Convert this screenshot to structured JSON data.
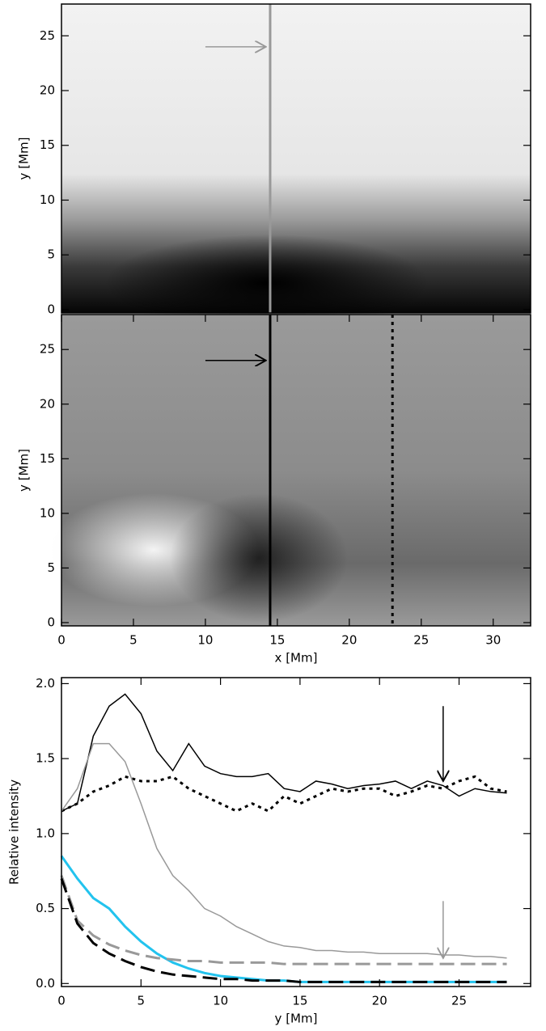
{
  "chart_data": [
    {
      "type": "image",
      "ylabel": "y [Mm]",
      "xlim": [
        0,
        32.6
      ],
      "ylim": [
        -0.3,
        27.9
      ],
      "yticks": [
        0,
        5,
        10,
        15,
        20,
        25
      ],
      "lines": [
        {
          "x": 14.5,
          "color": "#999999",
          "style": "solid"
        }
      ],
      "arrows": [
        {
          "x1": 10,
          "x2": 14.2,
          "y": 24,
          "color": "#999999"
        }
      ]
    },
    {
      "type": "image",
      "ylabel": "y [Mm]",
      "xlabel": "x [Mm]",
      "xlim": [
        0,
        32.6
      ],
      "ylim": [
        -0.3,
        28.2
      ],
      "xticks": [
        0,
        5,
        10,
        15,
        20,
        25,
        30
      ],
      "yticks": [
        0,
        5,
        10,
        15,
        20,
        25
      ],
      "lines": [
        {
          "x": 14.5,
          "color": "#000000",
          "style": "solid"
        },
        {
          "x": 23,
          "color": "#000000",
          "style": "dotted"
        }
      ],
      "arrows": [
        {
          "x1": 10,
          "x2": 14.2,
          "y": 24,
          "color": "#000000"
        }
      ]
    },
    {
      "type": "line",
      "ylabel": "Relative intensity",
      "xlabel": "y [Mm]",
      "xlim": [
        0,
        29.5
      ],
      "ylim": [
        -0.02,
        2.04
      ],
      "xticks": [
        0,
        5,
        10,
        15,
        20,
        25
      ],
      "yticks": [
        {
          "value": 0,
          "label": "0.0"
        },
        0.5,
        {
          "value": 1,
          "label": "1.0"
        },
        1.5,
        {
          "value": 2,
          "label": "2.0"
        }
      ],
      "x": [
        0,
        1,
        2,
        3,
        4,
        5,
        6,
        7,
        8,
        9,
        10,
        11,
        12,
        13,
        14,
        15,
        16,
        17,
        18,
        19,
        20,
        21,
        22,
        23,
        24,
        25,
        26,
        27,
        28
      ],
      "series": [
        {
          "color": "#000000",
          "style": "solid",
          "values": [
            1.15,
            1.2,
            1.65,
            1.85,
            1.93,
            1.8,
            1.55,
            1.42,
            1.6,
            1.45,
            1.4,
            1.38,
            1.38,
            1.4,
            1.3,
            1.28,
            1.35,
            1.33,
            1.3,
            1.32,
            1.33,
            1.35,
            1.3,
            1.35,
            1.32,
            1.25,
            1.3,
            1.28,
            1.27
          ]
        },
        {
          "color": "#000000",
          "style": "dotted",
          "values": [
            1.15,
            1.2,
            1.28,
            1.32,
            1.38,
            1.35,
            1.35,
            1.38,
            1.3,
            1.25,
            1.2,
            1.15,
            1.2,
            1.15,
            1.25,
            1.2,
            1.25,
            1.3,
            1.28,
            1.3,
            1.3,
            1.25,
            1.28,
            1.32,
            1.3,
            1.35,
            1.38,
            1.3,
            1.28
          ]
        },
        {
          "color": "#999999",
          "style": "solid",
          "values": [
            1.15,
            1.3,
            1.6,
            1.6,
            1.48,
            1.2,
            0.9,
            0.72,
            0.62,
            0.5,
            0.45,
            0.38,
            0.33,
            0.28,
            0.25,
            0.24,
            0.22,
            0.22,
            0.21,
            0.21,
            0.2,
            0.2,
            0.2,
            0.2,
            0.19,
            0.19,
            0.18,
            0.18,
            0.17
          ]
        },
        {
          "color": "#22c3ee",
          "style": "solid",
          "values": [
            0.85,
            0.7,
            0.57,
            0.5,
            0.38,
            0.28,
            0.2,
            0.14,
            0.1,
            0.07,
            0.05,
            0.04,
            0.03,
            0.02,
            0.02,
            0.01,
            0.01,
            0.01,
            0.01,
            0.01,
            0.01,
            0.01,
            0.01,
            0.01,
            0.01,
            0.01,
            0.01,
            0.01,
            0.01
          ]
        },
        {
          "color": "#999999",
          "style": "dashed",
          "values": [
            0.72,
            0.42,
            0.32,
            0.26,
            0.22,
            0.19,
            0.17,
            0.16,
            0.15,
            0.15,
            0.14,
            0.14,
            0.14,
            0.14,
            0.13,
            0.13,
            0.13,
            0.13,
            0.13,
            0.13,
            0.13,
            0.13,
            0.13,
            0.13,
            0.13,
            0.13,
            0.13,
            0.13,
            0.13
          ]
        },
        {
          "color": "#000000",
          "style": "dashed",
          "values": [
            0.7,
            0.4,
            0.27,
            0.2,
            0.15,
            0.11,
            0.08,
            0.06,
            0.05,
            0.04,
            0.03,
            0.03,
            0.02,
            0.02,
            0.02,
            0.01,
            0.01,
            0.01,
            0.01,
            0.01,
            0.01,
            0.01,
            0.01,
            0.01,
            0.01,
            0.01,
            0.01,
            0.01,
            0.01
          ]
        }
      ],
      "arrows": [
        {
          "x": 24,
          "y1": 1.85,
          "y2": 1.35,
          "color": "#000000"
        },
        {
          "x": 24,
          "y1": 0.55,
          "y2": 0.17,
          "color": "#999999"
        }
      ]
    }
  ]
}
